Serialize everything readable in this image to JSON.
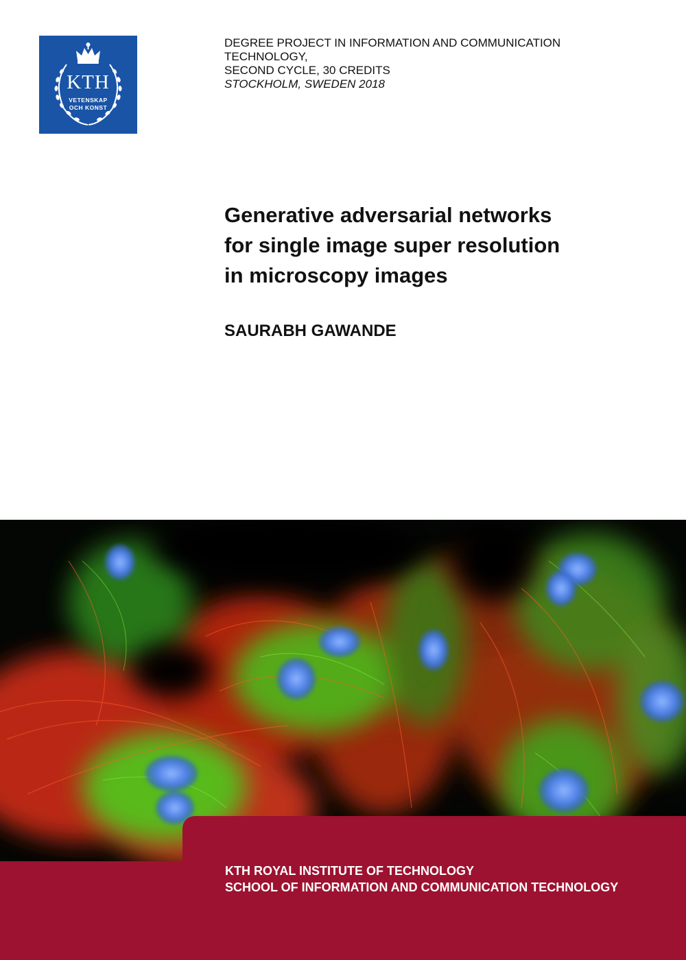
{
  "logo": {
    "name": "KTH",
    "line1": "VETENSKAP",
    "line2": "OCH KONST",
    "icon": "kth-crown-wreath-icon",
    "color": "#1954a6"
  },
  "degree_info": {
    "line1": "DEGREE PROJECT IN INFORMATION AND COMMUNICATION",
    "line2": "TECHNOLOGY,",
    "line3": "SECOND CYCLE, 30 CREDITS",
    "location": "STOCKHOLM, SWEDEN 2018"
  },
  "title": {
    "line1": "Generative adversarial networks",
    "line2": "for single image super resolution",
    "line3": "in microscopy images"
  },
  "author": "SAURABH GAWANDE",
  "cover_image": {
    "icon": "fluorescence-microscopy-cells-image"
  },
  "footer": {
    "line1": "KTH ROYAL INSTITUTE OF TECHNOLOGY",
    "line2": "SCHOOL OF INFORMATION AND COMMUNICATION TECHNOLOGY",
    "color": "#9d1230"
  }
}
